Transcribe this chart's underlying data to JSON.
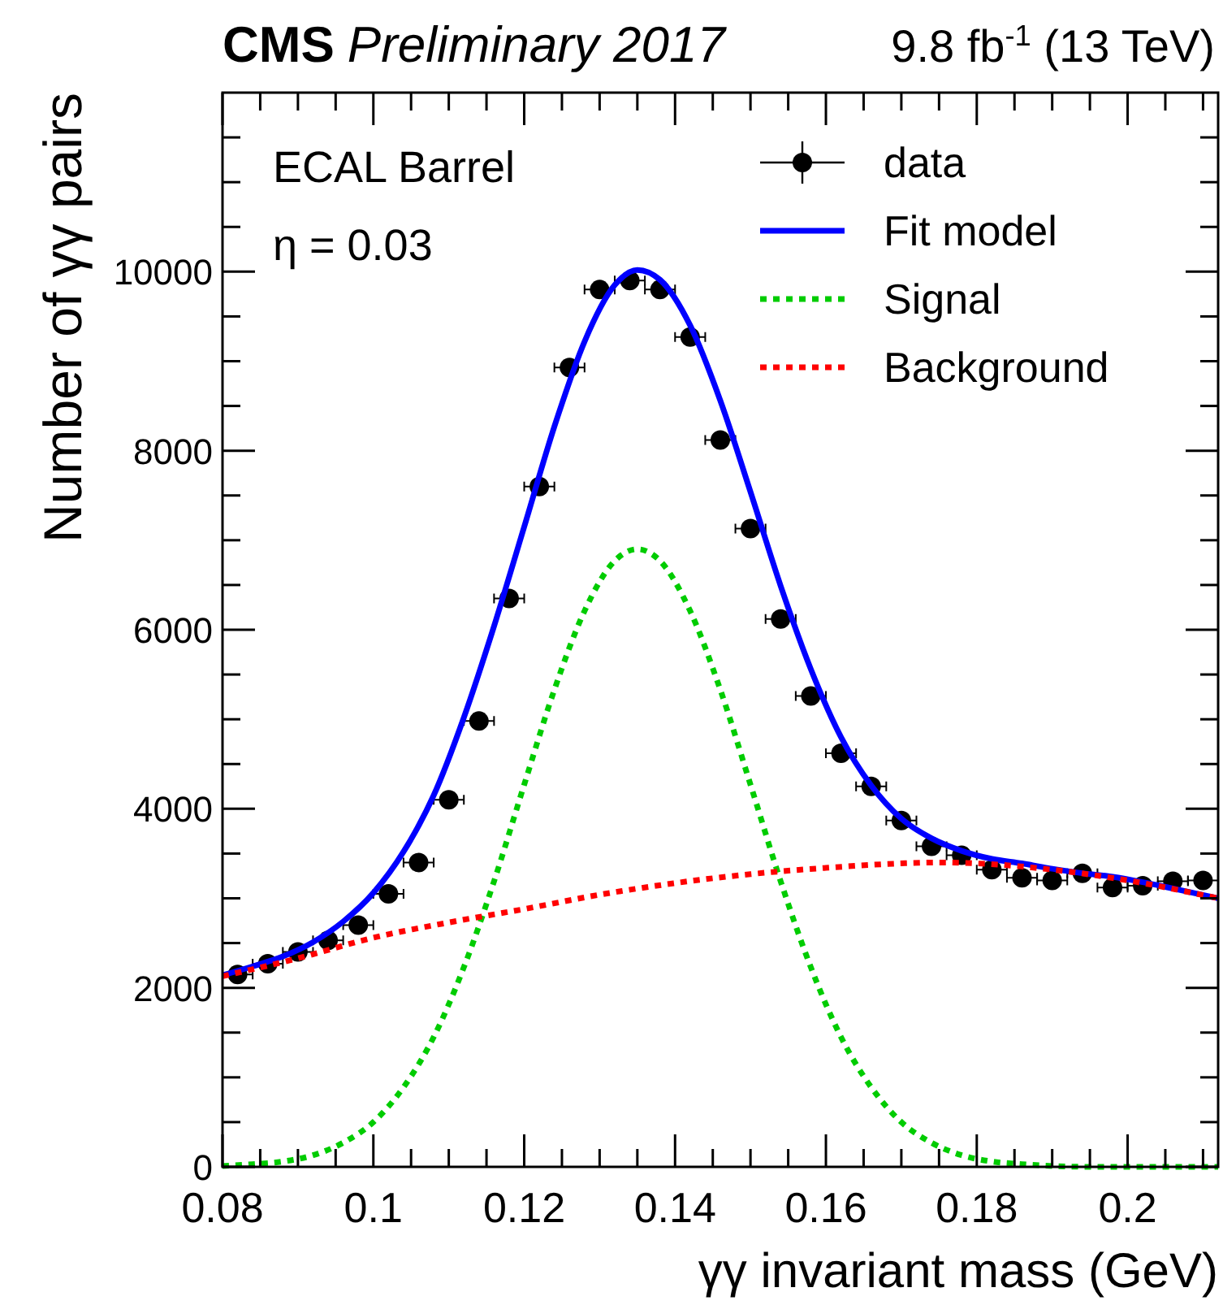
{
  "chart_data": {
    "type": "line",
    "title": "CMS",
    "subtitle": "Preliminary 2017",
    "xlabel": "γγ invariant mass (GeV)",
    "ylabel": "Number of γγ pairs",
    "annotations": [
      "9.8 fb$^{-1}$ (13 TeV)",
      "ECAL Barrel",
      "η = 0.03"
    ],
    "xlim": [
      0.08,
      0.212
    ],
    "ylim": [
      0,
      12000
    ],
    "xticks": [
      0.08,
      {
        "value": 0.085,
        "label": null
      },
      {
        "value": 0.09,
        "label": null
      },
      {
        "value": 0.095,
        "label": null
      },
      0.1,
      {
        "value": 0.105,
        "label": null
      },
      {
        "value": 0.11,
        "label": null
      },
      {
        "value": 0.115,
        "label": null
      },
      0.12,
      {
        "value": 0.125,
        "label": null
      },
      {
        "value": 0.13,
        "label": null
      },
      {
        "value": 0.135,
        "label": null
      },
      0.14,
      {
        "value": 0.145,
        "label": null
      },
      {
        "value": 0.15,
        "label": null
      },
      {
        "value": 0.155,
        "label": null
      },
      0.16,
      {
        "value": 0.165,
        "label": null
      },
      {
        "value": 0.17,
        "label": null
      },
      {
        "value": 0.175,
        "label": null
      },
      0.18,
      {
        "value": 0.185,
        "label": null
      },
      {
        "value": 0.19,
        "label": null
      },
      {
        "value": 0.195,
        "label": null
      },
      0.2,
      {
        "value": 0.205,
        "label": null
      },
      {
        "value": 0.21,
        "label": null
      }
    ],
    "yticks": [
      0,
      {
        "value": 500,
        "label": null
      },
      {
        "value": 1000,
        "label": null
      },
      {
        "value": 1500,
        "label": null
      },
      2000,
      {
        "value": 2500,
        "label": null
      },
      {
        "value": 3000,
        "label": null
      },
      {
        "value": 3500,
        "label": null
      },
      4000,
      {
        "value": 4500,
        "label": null
      },
      {
        "value": 5000,
        "label": null
      },
      {
        "value": 5500,
        "label": null
      },
      6000,
      {
        "value": 6500,
        "label": null
      },
      {
        "value": 7000,
        "label": null
      },
      {
        "value": 7500,
        "label": null
      },
      8000,
      {
        "value": 8500,
        "label": null
      },
      {
        "value": 9000,
        "label": null
      },
      {
        "value": 9500,
        "label": null
      },
      10000,
      {
        "value": 10500,
        "label": null
      },
      {
        "value": 11000,
        "label": null
      },
      {
        "value": 11500,
        "label": null
      }
    ],
    "grid": false,
    "legend": "top right",
    "series": [
      {
        "name": "data",
        "type": "scatter",
        "marker": "circle",
        "color": "#000000",
        "x": [
          0.082,
          0.086,
          0.09,
          0.094,
          0.098,
          0.102,
          0.106,
          0.11,
          0.114,
          0.118,
          0.122,
          0.126,
          0.13,
          0.134,
          0.138,
          0.142,
          0.146,
          0.15,
          0.154,
          0.158,
          0.162,
          0.166,
          0.17,
          0.174,
          0.178,
          0.182,
          0.186,
          0.19,
          0.194,
          0.198,
          0.202,
          0.206,
          0.21
        ],
        "values": [
          2150,
          2270,
          2400,
          2530,
          2700,
          3050,
          3400,
          4100,
          4980,
          6350,
          7600,
          8930,
          9800,
          9900,
          9800,
          9270,
          8120,
          7130,
          6120,
          5260,
          4620,
          4250,
          3870,
          3580,
          3480,
          3320,
          3230,
          3200,
          3280,
          3120,
          3140,
          3190,
          3200
        ],
        "xerrors": [
          0.002,
          0.002,
          0.002,
          0.002,
          0.002,
          0.002,
          0.002,
          0.002,
          0.002,
          0.002,
          0.002,
          0.002,
          0.002,
          0.002,
          0.002,
          0.002,
          0.002,
          0.002,
          0.002,
          0.002,
          0.002,
          0.002,
          0.002,
          0.002,
          0.002,
          0.002,
          0.002,
          0.002,
          0.002,
          0.002,
          0.002,
          0.002,
          0.002
        ]
      },
      {
        "name": "Fit model",
        "type": "line",
        "line_style": "solid",
        "color": "#0000ff",
        "x": [
          0.08,
          0.084,
          0.088,
          0.092,
          0.096,
          0.1,
          0.104,
          0.108,
          0.112,
          0.116,
          0.12,
          0.124,
          0.128,
          0.132,
          0.135,
          0.138,
          0.142,
          0.146,
          0.15,
          0.154,
          0.158,
          0.162,
          0.166,
          0.17,
          0.174,
          0.178,
          0.182,
          0.186,
          0.19,
          0.194,
          0.198,
          0.202,
          0.206,
          0.212
        ],
        "values": [
          2140,
          2240,
          2350,
          2510,
          2740,
          3060,
          3520,
          4150,
          5020,
          6040,
          7150,
          8270,
          9220,
          9850,
          10020,
          9910,
          9400,
          8560,
          7540,
          6490,
          5560,
          4800,
          4260,
          3890,
          3670,
          3530,
          3440,
          3390,
          3330,
          3280,
          3240,
          3180,
          3110,
          3000
        ]
      },
      {
        "name": "Signal",
        "type": "line",
        "line_style": "dotted",
        "color": "#00cc00",
        "x": [
          0.08,
          0.084,
          0.088,
          0.092,
          0.096,
          0.1,
          0.104,
          0.108,
          0.112,
          0.116,
          0.12,
          0.124,
          0.128,
          0.132,
          0.135,
          0.138,
          0.142,
          0.146,
          0.15,
          0.154,
          0.158,
          0.162,
          0.166,
          0.17,
          0.174,
          0.178,
          0.182,
          0.186,
          0.19,
          0.196,
          0.204,
          0.212
        ],
        "values": [
          10,
          30,
          60,
          130,
          270,
          500,
          890,
          1450,
          2230,
          3190,
          4270,
          5330,
          6210,
          6770,
          6900,
          6770,
          6210,
          5330,
          4270,
          3190,
          2230,
          1450,
          890,
          500,
          270,
          130,
          60,
          30,
          10,
          0,
          0,
          0
        ]
      },
      {
        "name": "Background",
        "type": "line",
        "line_style": "dotted",
        "color": "#ff0000",
        "x": [
          0.08,
          0.09,
          0.1,
          0.11,
          0.12,
          0.13,
          0.14,
          0.15,
          0.16,
          0.17,
          0.175,
          0.18,
          0.19,
          0.2,
          0.212
        ],
        "values": [
          2130,
          2330,
          2560,
          2730,
          2880,
          3040,
          3170,
          3270,
          3340,
          3390,
          3400,
          3390,
          3320,
          3200,
          3000
        ]
      }
    ]
  }
}
